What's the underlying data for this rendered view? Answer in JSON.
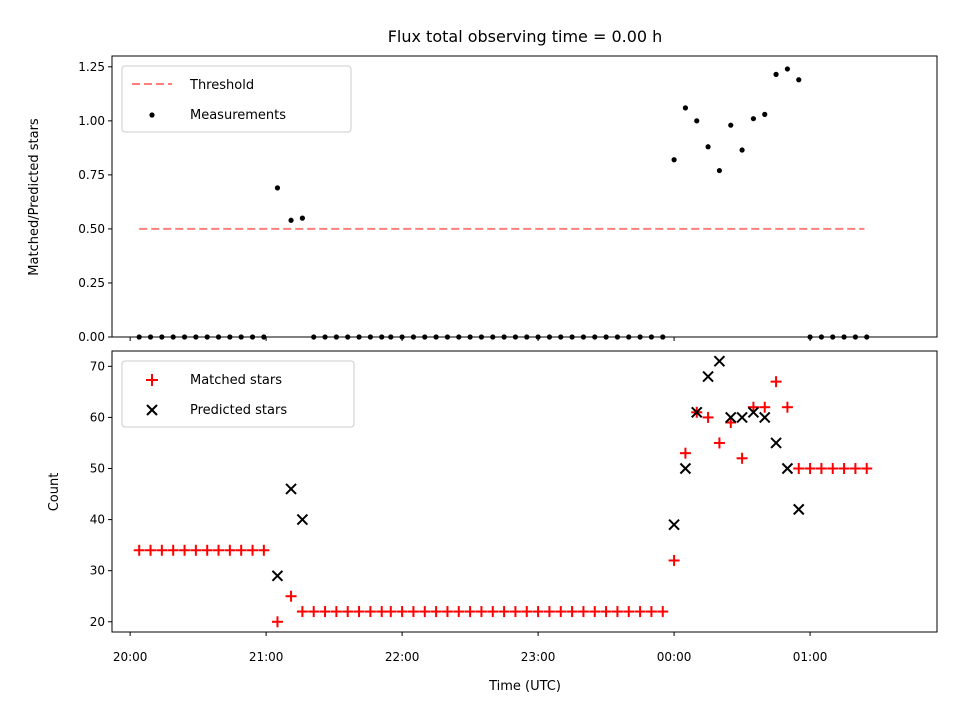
{
  "chart_data": [
    {
      "type": "scatter",
      "title": "Flux total observing time = 0.00 h",
      "ylabel": "Matched/Predicted stars",
      "xlabel": "",
      "ylim": [
        0.0,
        1.3
      ],
      "yticks": [
        "0.00",
        "0.25",
        "0.50",
        "0.75",
        "1.00",
        "1.25"
      ],
      "xlim": [
        "19:52",
        "01:56"
      ],
      "legend": "top-left",
      "threshold": {
        "name": "Threshold",
        "value": 0.5,
        "x_range": [
          "20:04",
          "01:24"
        ],
        "color": "#ff7f7f"
      },
      "series": [
        {
          "name": "Measurements",
          "color": "#000000",
          "marker": "dot",
          "x": [
            "20:04",
            "20:09",
            "20:14",
            "20:19",
            "20:24",
            "20:29",
            "20:34",
            "20:39",
            "20:44",
            "20:49",
            "20:54",
            "20:59",
            "21:05",
            "21:11",
            "21:16",
            "21:21",
            "21:26",
            "21:31",
            "21:36",
            "21:41",
            "21:46",
            "21:51",
            "21:55",
            "22:00",
            "22:05",
            "22:10",
            "22:15",
            "22:20",
            "22:25",
            "22:30",
            "22:35",
            "22:40",
            "22:45",
            "22:50",
            "22:55",
            "23:00",
            "23:05",
            "23:10",
            "23:15",
            "23:20",
            "23:25",
            "23:30",
            "23:35",
            "23:40",
            "23:45",
            "23:50",
            "23:55",
            "00:00",
            "00:05",
            "00:10",
            "00:15",
            "00:20",
            "00:25",
            "00:30",
            "00:35",
            "00:40",
            "00:45",
            "00:50",
            "00:55",
            "01:00",
            "01:05",
            "01:10",
            "01:15",
            "01:20",
            "01:25"
          ],
          "y": [
            0,
            0,
            0,
            0,
            0,
            0,
            0,
            0,
            0,
            0,
            0,
            0,
            0.69,
            0.54,
            0.55,
            0,
            0,
            0,
            0,
            0,
            0,
            0,
            0,
            0,
            0,
            0,
            0,
            0,
            0,
            0,
            0,
            0,
            0,
            0,
            0,
            0,
            0,
            0,
            0,
            0,
            0,
            0,
            0,
            0,
            0,
            0,
            0,
            0.82,
            1.06,
            1.0,
            0.88,
            0.77,
            0.98,
            0.865,
            1.01,
            1.03,
            1.215,
            1.24,
            1.19,
            0,
            0,
            0,
            0,
            0,
            0
          ]
        }
      ]
    },
    {
      "type": "scatter",
      "title": "",
      "ylabel": "Count",
      "xlabel": "Time (UTC)",
      "ylim": [
        18,
        73
      ],
      "yticks": [
        "20",
        "30",
        "40",
        "50",
        "60",
        "70"
      ],
      "xticks": [
        "20:00",
        "21:00",
        "22:00",
        "23:00",
        "00:00",
        "01:00"
      ],
      "xlim": [
        "19:52",
        "01:56"
      ],
      "legend": "top-left",
      "series": [
        {
          "name": "Matched stars",
          "color": "#ff0000",
          "marker": "plus",
          "x": [
            "20:04",
            "20:09",
            "20:14",
            "20:19",
            "20:24",
            "20:29",
            "20:34",
            "20:39",
            "20:44",
            "20:49",
            "20:54",
            "20:59",
            "21:05",
            "21:11",
            "21:16",
            "21:21",
            "21:26",
            "21:31",
            "21:36",
            "21:41",
            "21:46",
            "21:51",
            "21:55",
            "22:00",
            "22:05",
            "22:10",
            "22:15",
            "22:20",
            "22:25",
            "22:30",
            "22:35",
            "22:40",
            "22:45",
            "22:50",
            "22:55",
            "23:00",
            "23:05",
            "23:10",
            "23:15",
            "23:20",
            "23:25",
            "23:30",
            "23:35",
            "23:40",
            "23:45",
            "23:50",
            "23:55",
            "00:00",
            "00:05",
            "00:10",
            "00:15",
            "00:20",
            "00:25",
            "00:30",
            "00:35",
            "00:40",
            "00:45",
            "00:50",
            "00:55",
            "01:00",
            "01:05",
            "01:10",
            "01:15",
            "01:20",
            "01:25"
          ],
          "y": [
            34,
            34,
            34,
            34,
            34,
            34,
            34,
            34,
            34,
            34,
            34,
            34,
            20,
            25,
            22,
            22,
            22,
            22,
            22,
            22,
            22,
            22,
            22,
            22,
            22,
            22,
            22,
            22,
            22,
            22,
            22,
            22,
            22,
            22,
            22,
            22,
            22,
            22,
            22,
            22,
            22,
            22,
            22,
            22,
            22,
            22,
            22,
            32,
            53,
            61,
            60,
            55,
            59,
            52,
            62,
            62,
            67,
            62,
            50,
            50,
            50,
            50,
            50,
            50,
            50
          ]
        },
        {
          "name": "Predicted stars",
          "color": "#000000",
          "marker": "x",
          "x": [
            "21:05",
            "21:11",
            "21:16",
            "00:00",
            "00:05",
            "00:10",
            "00:15",
            "00:20",
            "00:25",
            "00:30",
            "00:35",
            "00:40",
            "00:45",
            "00:50",
            "00:55"
          ],
          "y": [
            29,
            46,
            40,
            39,
            50,
            61,
            68,
            71,
            60,
            60,
            61,
            60,
            55,
            50,
            42
          ]
        }
      ]
    }
  ]
}
